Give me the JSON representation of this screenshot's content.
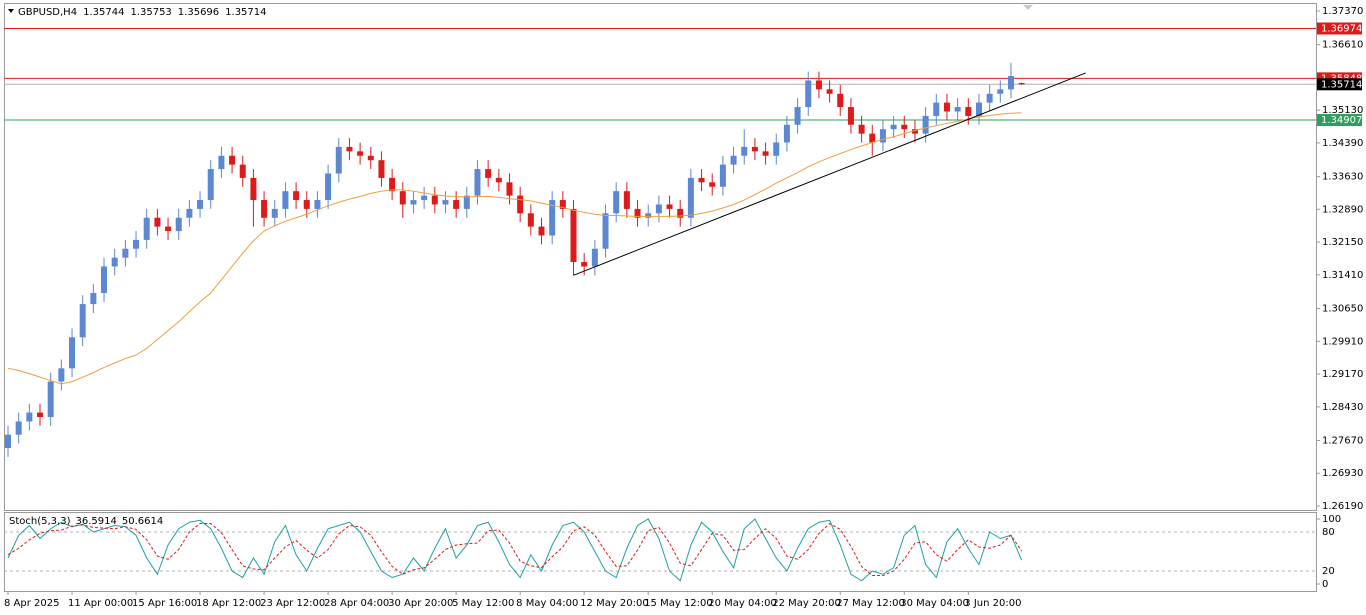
{
  "chart_data": {
    "type": "candlestick",
    "symbol": "GBPUSD,H4",
    "categories": [
      "8 Apr 2025",
      null,
      null,
      null,
      null,
      null,
      "11 Apr 00:00",
      null,
      null,
      null,
      null,
      null,
      "15 Apr 16:00",
      null,
      null,
      null,
      null,
      null,
      "18 Apr 12:00",
      null,
      null,
      null,
      null,
      null,
      "23 Apr 12:00",
      null,
      null,
      null,
      null,
      null,
      "28 Apr 04:00",
      null,
      null,
      null,
      null,
      null,
      "30 Apr 20:00",
      null,
      null,
      null,
      null,
      null,
      "5 May 12:00",
      null,
      null,
      null,
      null,
      null,
      "8 May 04:00",
      null,
      null,
      null,
      null,
      null,
      "12 May 20:00",
      null,
      null,
      null,
      null,
      null,
      "15 May 12:00",
      null,
      null,
      null,
      null,
      null,
      "20 May 04:00",
      null,
      null,
      null,
      null,
      null,
      "22 May 20:00",
      null,
      null,
      null,
      null,
      null,
      "27 May 12:00",
      null,
      null,
      null,
      null,
      null,
      "30 May 04:00",
      null,
      null,
      null,
      null,
      null,
      "3 Jun 20:00",
      null,
      null,
      null,
      null,
      null
    ],
    "open": [
      1.275,
      1.278,
      1.281,
      1.283,
      1.282,
      1.29,
      1.293,
      1.3,
      1.3075,
      1.31,
      1.316,
      1.318,
      1.32,
      1.322,
      1.327,
      1.325,
      1.324,
      1.327,
      1.329,
      1.331,
      1.338,
      1.341,
      1.339,
      1.336,
      1.331,
      1.327,
      1.329,
      1.333,
      1.331,
      1.329,
      1.331,
      1.337,
      1.343,
      1.342,
      1.341,
      1.34,
      1.336,
      1.333,
      1.33,
      1.331,
      1.332,
      1.33,
      1.331,
      1.329,
      1.332,
      1.338,
      1.336,
      1.335,
      1.332,
      1.328,
      1.325,
      1.323,
      1.331,
      1.329,
      1.317,
      1.316,
      1.32,
      1.328,
      1.333,
      1.329,
      1.327,
      1.328,
      1.33,
      1.329,
      1.327,
      1.336,
      1.335,
      1.334,
      1.339,
      1.341,
      1.343,
      1.342,
      1.341,
      1.344,
      1.348,
      1.352,
      1.358,
      1.356,
      1.355,
      1.352,
      1.348,
      1.346,
      1.344,
      1.347,
      1.348,
      1.347,
      1.346,
      1.35,
      1.353,
      1.351,
      1.352,
      1.35,
      1.353,
      1.355,
      1.356,
      1.35744
    ],
    "high": [
      1.28,
      1.283,
      1.285,
      1.285,
      1.292,
      1.295,
      1.302,
      1.3095,
      1.312,
      1.318,
      1.32,
      1.322,
      1.324,
      1.329,
      1.329,
      1.327,
      1.329,
      1.331,
      1.333,
      1.34,
      1.343,
      1.343,
      1.341,
      1.338,
      1.333,
      1.331,
      1.335,
      1.335,
      1.333,
      1.333,
      1.339,
      1.345,
      1.345,
      1.344,
      1.343,
      1.342,
      1.338,
      1.335,
      1.333,
      1.334,
      1.334,
      1.333,
      1.333,
      1.334,
      1.34,
      1.34,
      1.338,
      1.337,
      1.334,
      1.33,
      1.327,
      1.333,
      1.333,
      1.331,
      1.319,
      1.322,
      1.33,
      1.335,
      1.335,
      1.331,
      1.33,
      1.332,
      1.332,
      1.331,
      1.338,
      1.338,
      1.337,
      1.341,
      1.343,
      1.347,
      1.345,
      1.344,
      1.346,
      1.35,
      1.354,
      1.36,
      1.36,
      1.358,
      1.357,
      1.354,
      1.35,
      1.348,
      1.349,
      1.35,
      1.35,
      1.349,
      1.352,
      1.355,
      1.355,
      1.354,
      1.354,
      1.355,
      1.357,
      1.358,
      1.362,
      1.35753
    ],
    "low": [
      1.273,
      1.276,
      1.279,
      1.28,
      1.28,
      1.288,
      1.291,
      1.298,
      1.3055,
      1.308,
      1.314,
      1.316,
      1.318,
      1.32,
      1.323,
      1.322,
      1.322,
      1.325,
      1.327,
      1.329,
      1.336,
      1.337,
      1.334,
      1.325,
      1.325,
      1.325,
      1.327,
      1.329,
      1.327,
      1.327,
      1.329,
      1.335,
      1.34,
      1.339,
      1.338,
      1.334,
      1.331,
      1.327,
      1.328,
      1.329,
      1.328,
      1.328,
      1.327,
      1.327,
      1.33,
      1.334,
      1.333,
      1.33,
      1.326,
      1.323,
      1.321,
      1.321,
      1.327,
      1.314,
      1.314,
      1.314,
      1.318,
      1.326,
      1.327,
      1.325,
      1.325,
      1.326,
      1.327,
      1.325,
      1.325,
      1.333,
      1.332,
      1.332,
      1.337,
      1.339,
      1.34,
      1.339,
      1.339,
      1.342,
      1.346,
      1.35,
      1.354,
      1.353,
      1.35,
      1.346,
      1.344,
      1.341,
      1.342,
      1.345,
      1.345,
      1.344,
      1.344,
      1.348,
      1.349,
      1.349,
      1.348,
      1.348,
      1.351,
      1.353,
      1.354,
      1.35696
    ],
    "close": [
      1.278,
      1.281,
      1.283,
      1.282,
      1.29,
      1.293,
      1.3,
      1.3075,
      1.31,
      1.316,
      1.318,
      1.32,
      1.322,
      1.327,
      1.325,
      1.324,
      1.327,
      1.329,
      1.331,
      1.338,
      1.341,
      1.339,
      1.336,
      1.331,
      1.327,
      1.329,
      1.333,
      1.331,
      1.329,
      1.331,
      1.337,
      1.343,
      1.342,
      1.341,
      1.34,
      1.336,
      1.333,
      1.33,
      1.331,
      1.332,
      1.33,
      1.331,
      1.329,
      1.332,
      1.338,
      1.336,
      1.335,
      1.332,
      1.328,
      1.325,
      1.323,
      1.331,
      1.329,
      1.317,
      1.316,
      1.32,
      1.328,
      1.333,
      1.329,
      1.327,
      1.328,
      1.33,
      1.329,
      1.327,
      1.336,
      1.335,
      1.334,
      1.339,
      1.341,
      1.343,
      1.342,
      1.341,
      1.344,
      1.348,
      1.352,
      1.358,
      1.356,
      1.355,
      1.352,
      1.348,
      1.346,
      1.344,
      1.347,
      1.348,
      1.347,
      1.346,
      1.35,
      1.353,
      1.351,
      1.352,
      1.35,
      1.353,
      1.355,
      1.356,
      1.359,
      1.35714
    ],
    "up_color": "#5b87d3",
    "down_color": "#dd1b1b",
    "current_color": "#000000",
    "ylim": [
      1.261,
      1.3755
    ],
    "yticks": [
      {
        "value": 1.3737,
        "label": "1.37370"
      },
      {
        "value": 1.3661,
        "label": "1.36610"
      },
      {
        "value": 1.3513,
        "label": "1.35130"
      },
      {
        "value": 1.3439,
        "label": "1.34390"
      },
      {
        "value": 1.3363,
        "label": "1.33630"
      },
      {
        "value": 1.3289,
        "label": "1.32890"
      },
      {
        "value": 1.3215,
        "label": "1.32150"
      },
      {
        "value": 1.3141,
        "label": "1.31410"
      },
      {
        "value": 1.3065,
        "label": "1.30650"
      },
      {
        "value": 1.2991,
        "label": "1.29910"
      },
      {
        "value": 1.2917,
        "label": "1.29170"
      },
      {
        "value": 1.2843,
        "label": "1.28430"
      },
      {
        "value": 1.2767,
        "label": "1.27670"
      },
      {
        "value": 1.2693,
        "label": "1.26930"
      },
      {
        "value": 1.2619,
        "label": "1.26190"
      }
    ],
    "ma": {
      "color": "#e8a040",
      "values": [
        1.293,
        1.2925,
        1.2918,
        1.291,
        1.2902,
        1.2895,
        1.29,
        1.291,
        1.292,
        1.2932,
        1.2942,
        1.2952,
        1.296,
        1.2975,
        1.2995,
        1.3015,
        1.3035,
        1.3058,
        1.308,
        1.31,
        1.313,
        1.316,
        1.319,
        1.3218,
        1.324,
        1.3252,
        1.3262,
        1.327,
        1.3278,
        1.3288,
        1.3297,
        1.3305,
        1.3312,
        1.3318,
        1.3325,
        1.333,
        1.3333,
        1.3333,
        1.333,
        1.3326,
        1.3322,
        1.3319,
        1.3318,
        1.3317,
        1.3318,
        1.3318,
        1.3316,
        1.3313,
        1.3311,
        1.3308,
        1.3303,
        1.3298,
        1.3293,
        1.3287,
        1.3282,
        1.3278,
        1.3275,
        1.3275,
        1.3274,
        1.3273,
        1.3273,
        1.3273,
        1.3273,
        1.3274,
        1.3276,
        1.328,
        1.3285,
        1.3292,
        1.33,
        1.331,
        1.3322,
        1.3335,
        1.3348,
        1.336,
        1.3372,
        1.3385,
        1.3396,
        1.3406,
        1.3415,
        1.3424,
        1.3432,
        1.344,
        1.3447,
        1.3453,
        1.346,
        1.3467,
        1.3473,
        1.3478,
        1.3483,
        1.3488,
        1.3493,
        1.3498,
        1.3501,
        1.3504,
        1.3506,
        1.3507
      ]
    },
    "levels": [
      {
        "value": 1.36974,
        "color": "#dd1b1b"
      },
      {
        "value": 1.35848,
        "color": "#dd1b1b"
      },
      {
        "value": 1.34907,
        "color": "#2e9e5e"
      }
    ],
    "trendline": {
      "x": [
        53,
        101
      ],
      "y": [
        1.314,
        1.3597
      ],
      "color": "#000000"
    },
    "indicator": {
      "type": "line",
      "title": "Stoch(5,3,3)",
      "ylim": [
        0,
        100
      ],
      "yticks": [
        100,
        80,
        20,
        0
      ],
      "series": [
        {
          "color": "#20a0a0",
          "values": [
            40,
            75,
            90,
            70,
            85,
            95,
            88,
            92,
            80,
            85,
            90,
            88,
            75,
            40,
            15,
            60,
            85,
            95,
            98,
            85,
            55,
            20,
            10,
            40,
            15,
            65,
            90,
            45,
            20,
            55,
            85,
            90,
            95,
            80,
            50,
            20,
            10,
            15,
            40,
            20,
            55,
            85,
            40,
            60,
            90,
            95,
            65,
            30,
            10,
            45,
            20,
            60,
            90,
            95,
            80,
            50,
            20,
            10,
            55,
            90,
            100,
            70,
            20,
            5,
            60,
            95,
            80,
            50,
            25,
            85,
            100,
            70,
            40,
            20,
            55,
            85,
            95,
            98,
            60,
            15,
            5,
            20,
            15,
            25,
            75,
            90,
            30,
            10,
            65,
            85,
            55,
            30,
            80,
            70,
            75,
            36.5914
          ]
        },
        {
          "color": "#dd1b1b",
          "dashed": true,
          "values": [
            45,
            55,
            68,
            78,
            82,
            83,
            89,
            91,
            87,
            86,
            85,
            88,
            84,
            68,
            43,
            38,
            53,
            80,
            93,
            93,
            79,
            53,
            28,
            23,
            22,
            40,
            57,
            67,
            52,
            40,
            53,
            77,
            90,
            88,
            75,
            50,
            27,
            15,
            22,
            25,
            38,
            53,
            60,
            62,
            63,
            82,
            83,
            63,
            35,
            28,
            25,
            42,
            57,
            82,
            88,
            75,
            50,
            27,
            28,
            52,
            82,
            87,
            63,
            32,
            28,
            53,
            78,
            75,
            52,
            53,
            70,
            85,
            70,
            43,
            38,
            53,
            78,
            93,
            84,
            58,
            27,
            13,
            13,
            20,
            38,
            63,
            65,
            45,
            35,
            53,
            68,
            57,
            55,
            60,
            75,
            50.6614
          ]
        }
      ]
    }
  }
}
